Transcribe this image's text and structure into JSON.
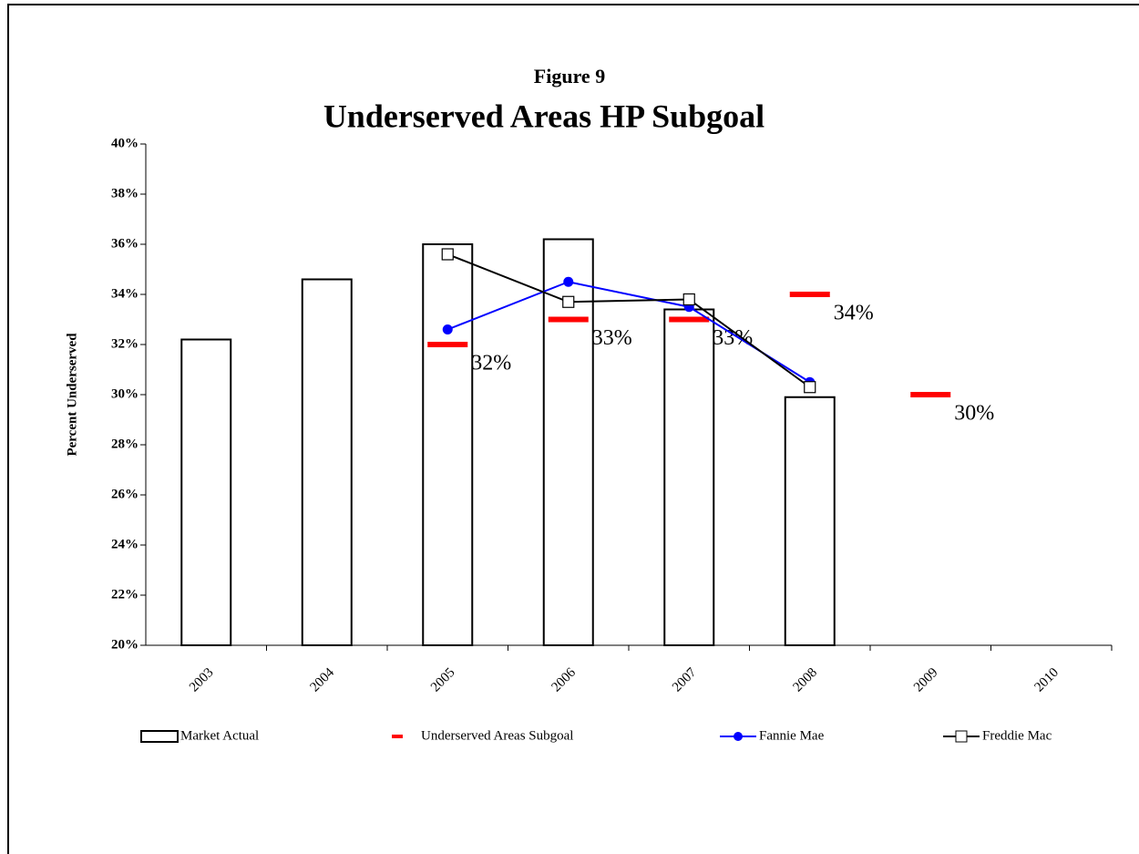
{
  "chart_data": {
    "type": "bar-line",
    "supertitle": "Figure 9",
    "title": "Underserved Areas HP Subgoal",
    "y_label": "Percent Underserved",
    "categories": [
      "2003",
      "2004",
      "2005",
      "2006",
      "2007",
      "2008",
      "2009",
      "2010"
    ],
    "ylim": [
      20,
      40
    ],
    "yticks": [
      {
        "value": 20,
        "label": "20%"
      },
      {
        "value": 22,
        "label": "22%"
      },
      {
        "value": 24,
        "label": "24%"
      },
      {
        "value": 26,
        "label": "26%"
      },
      {
        "value": 28,
        "label": "28%"
      },
      {
        "value": 30,
        "label": "30%"
      },
      {
        "value": 32,
        "label": "32%"
      },
      {
        "value": 34,
        "label": "34%"
      },
      {
        "value": 36,
        "label": "36%"
      },
      {
        "value": 38,
        "label": "38%"
      },
      {
        "value": 40,
        "label": "40%"
      }
    ],
    "series": [
      {
        "name": "Market Actual",
        "kind": "bar",
        "color": "#ffffff",
        "values": [
          32.2,
          34.6,
          36.0,
          36.2,
          33.4,
          29.9,
          null,
          null
        ]
      },
      {
        "name": "Underserved Areas Subgoal",
        "kind": "dash",
        "color": "#ff0000",
        "values": [
          null,
          null,
          32,
          33,
          33,
          34,
          30,
          null
        ],
        "value_labels": [
          null,
          null,
          "32%",
          "33%",
          "33%",
          "34%",
          "30%",
          null
        ]
      },
      {
        "name": "Fannie Mae",
        "kind": "line",
        "color": "#0000ff",
        "marker": "circle",
        "values": [
          null,
          null,
          32.6,
          34.5,
          33.5,
          30.5,
          null,
          null
        ]
      },
      {
        "name": "Freddie Mac",
        "kind": "line",
        "color": "#000000",
        "marker": "square",
        "values": [
          null,
          null,
          35.6,
          33.7,
          33.8,
          30.3,
          null,
          null
        ]
      }
    ]
  }
}
